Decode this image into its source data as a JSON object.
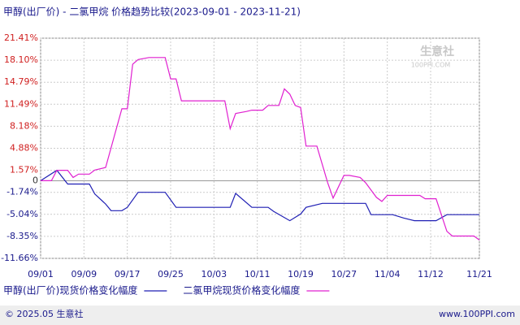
{
  "chart_data": {
    "type": "line",
    "title": "甲醇(出厂价) - 二氯甲烷 价格趋势比较(2023-09-01 - 2023-11-21)",
    "watermark": [
      "生意社",
      "100PPI.COM"
    ],
    "footer_left": "© 2025.05 生意社",
    "footer_right": "www.100PPI.com",
    "grid": true,
    "xlim": [
      "09/01",
      "11/21"
    ],
    "xticks": [
      "09/01",
      "09/09",
      "09/17",
      "09/25",
      "10/03",
      "10/11",
      "10/19",
      "10/27",
      "11/04",
      "11/12",
      "11/21"
    ],
    "ylim": [
      -11.66,
      21.41
    ],
    "yticks": [
      {
        "value": 21.41,
        "label": "21.41%"
      },
      {
        "value": 18.1,
        "label": "18.10%"
      },
      {
        "value": 14.79,
        "label": "14.79%"
      },
      {
        "value": 11.49,
        "label": "11.49%"
      },
      {
        "value": 8.18,
        "label": "8.18%"
      },
      {
        "value": 4.88,
        "label": "4.88%"
      },
      {
        "value": 1.57,
        "label": "1.57%"
      },
      0,
      {
        "value": -1.74,
        "label": "-1.74%"
      },
      {
        "value": -5.04,
        "label": "-5.04%"
      },
      {
        "value": -8.35,
        "label": "-8.35%"
      },
      {
        "value": -11.66,
        "label": "-11.66%"
      }
    ],
    "series": [
      {
        "name": "甲醇(出厂价)现货价格变化幅度",
        "color": "#1f1fb4",
        "x": [
          "09/01",
          "09/04",
          "09/06",
          "09/10",
          "09/11",
          "09/13",
          "09/14",
          "09/16",
          "09/17",
          "09/19",
          "09/24",
          "09/26",
          "10/06",
          "10/07",
          "10/10",
          "10/13",
          "10/14",
          "10/17",
          "10/19",
          "10/20",
          "10/23",
          "10/31",
          "11/01",
          "11/05",
          "11/07",
          "11/09",
          "11/13",
          "11/15",
          "11/21"
        ],
        "values": [
          0,
          1.57,
          -0.5,
          -0.5,
          -2.0,
          -3.5,
          -4.5,
          -4.5,
          -4.0,
          -1.74,
          -1.74,
          -4.0,
          -4.0,
          -1.9,
          -4.0,
          -4.0,
          -4.6,
          -6.0,
          -5.0,
          -4.0,
          -3.4,
          -3.4,
          -5.1,
          -5.1,
          -5.6,
          -6.0,
          -6.0,
          -5.1,
          -5.1
        ]
      },
      {
        "name": "二氯甲烷现货价格变化幅度",
        "color": "#e020d0",
        "x": [
          "09/01",
          "09/03",
          "09/04",
          "09/06",
          "09/07",
          "09/08",
          "09/10",
          "09/11",
          "09/13",
          "09/16",
          "09/17",
          "09/18",
          "09/19",
          "09/21",
          "09/24",
          "09/25",
          "09/26",
          "09/27",
          "10/05",
          "10/06",
          "10/07",
          "10/09",
          "10/10",
          "10/12",
          "10/13",
          "10/15",
          "10/16",
          "10/17",
          "10/18",
          "10/19",
          "10/20",
          "10/22",
          "10/24",
          "10/25",
          "10/27",
          "10/28",
          "10/30",
          "10/31",
          "11/02",
          "11/03",
          "11/04",
          "11/10",
          "11/11",
          "11/13",
          "11/15",
          "11/16",
          "11/20",
          "11/21"
        ],
        "values": [
          0,
          0,
          1.57,
          1.57,
          0.5,
          1.0,
          1.0,
          1.6,
          2.0,
          10.8,
          10.8,
          17.5,
          18.2,
          18.5,
          18.5,
          15.3,
          15.3,
          12.0,
          12.0,
          7.8,
          10.1,
          10.4,
          10.6,
          10.6,
          11.3,
          11.3,
          13.8,
          13.0,
          11.3,
          11.0,
          5.2,
          5.2,
          -0.3,
          -2.6,
          0.8,
          0.8,
          0.5,
          -0.3,
          -2.5,
          -3.1,
          -2.2,
          -2.2,
          -2.7,
          -2.7,
          -7.6,
          -8.3,
          -8.3,
          -8.9
        ]
      }
    ]
  }
}
